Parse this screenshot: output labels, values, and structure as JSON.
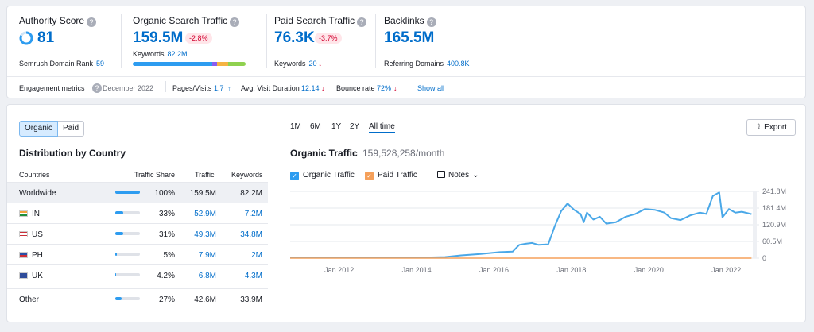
{
  "summary": {
    "authority": {
      "title": "Authority Score",
      "value": "81",
      "sub_label": "Semrush Domain Rank",
      "sub_value": "59"
    },
    "organic": {
      "title": "Organic Search Traffic",
      "value": "159.5M",
      "badge": "-2.8%",
      "sub_label": "Keywords",
      "sub_value": "82.2M"
    },
    "paid": {
      "title": "Paid Search Traffic",
      "value": "76.3K",
      "badge": "-3.7%",
      "sub_label": "Keywords",
      "sub_value": "20"
    },
    "backlinks": {
      "title": "Backlinks",
      "value": "165.5M",
      "sub_label": "Referring Domains",
      "sub_value": "400.8K"
    }
  },
  "engagement": {
    "label": "Engagement metrics",
    "date": "December 2022",
    "pages_label": "Pages/Visits",
    "pages_value": "1.7",
    "duration_label": "Avg. Visit Duration",
    "duration_value": "12:14",
    "bounce_label": "Bounce rate",
    "bounce_value": "72%",
    "show_all": "Show all"
  },
  "toggle": {
    "organic": "Organic",
    "paid": "Paid"
  },
  "distribution": {
    "title": "Distribution by Country",
    "headers": {
      "countries": "Countries",
      "share": "Traffic Share",
      "traffic": "Traffic",
      "keywords": "Keywords"
    },
    "rows": [
      {
        "country": "Worldwide",
        "share": "100%",
        "share_frac": 1.0,
        "traffic": "159.5M",
        "keywords": "82.2M"
      },
      {
        "country": "IN",
        "share": "33%",
        "share_frac": 0.33,
        "traffic": "52.9M",
        "keywords": "7.2M"
      },
      {
        "country": "US",
        "share": "31%",
        "share_frac": 0.31,
        "traffic": "49.3M",
        "keywords": "34.8M"
      },
      {
        "country": "PH",
        "share": "5%",
        "share_frac": 0.05,
        "traffic": "7.9M",
        "keywords": "2M"
      },
      {
        "country": "UK",
        "share": "4.2%",
        "share_frac": 0.042,
        "traffic": "6.8M",
        "keywords": "4.3M"
      },
      {
        "country": "Other",
        "share": "27%",
        "share_frac": 0.27,
        "traffic": "42.6M",
        "keywords": "33.9M"
      }
    ]
  },
  "ranges": [
    "1M",
    "6M",
    "1Y",
    "2Y",
    "All time"
  ],
  "export_label": "Export",
  "chart_title": "Organic Traffic",
  "chart_subtitle": "159,528,258/month",
  "legend": {
    "organic": "Organic Traffic",
    "paid": "Paid Traffic",
    "notes": "Notes"
  },
  "colors": {
    "organic": "#4aa8e8",
    "paid": "#f5a05a",
    "accent": "#006dca",
    "negative": "#d1002f"
  },
  "chart_data": {
    "type": "line",
    "title": "Organic Traffic",
    "x_ticks": [
      "Jan 2012",
      "Jan 2014",
      "Jan 2016",
      "Jan 2018",
      "Jan 2020",
      "Jan 2022"
    ],
    "y_ticks": [
      "241.8M",
      "181.4M",
      "120.9M",
      "60.5M",
      "0"
    ],
    "ylim": [
      0,
      241.8
    ],
    "grid": true,
    "series": [
      {
        "name": "Organic Traffic",
        "points": [
          [
            "2011-01",
            2
          ],
          [
            "2012-06",
            2
          ],
          [
            "2013-06",
            2
          ],
          [
            "2014-06",
            2
          ],
          [
            "2015-01",
            4
          ],
          [
            "2015-06",
            10
          ],
          [
            "2015-12",
            15
          ],
          [
            "2016-06",
            22
          ],
          [
            "2016-10",
            24
          ],
          [
            "2016-12",
            48
          ],
          [
            "2017-02",
            52
          ],
          [
            "2017-04",
            55
          ],
          [
            "2017-06",
            48
          ],
          [
            "2017-09",
            50
          ],
          [
            "2017-11",
            115
          ],
          [
            "2018-01",
            170
          ],
          [
            "2018-03",
            198
          ],
          [
            "2018-05",
            175
          ],
          [
            "2018-07",
            160
          ],
          [
            "2018-08",
            130
          ],
          [
            "2018-09",
            165
          ],
          [
            "2018-11",
            140
          ],
          [
            "2019-01",
            150
          ],
          [
            "2019-03",
            125
          ],
          [
            "2019-06",
            130
          ],
          [
            "2019-09",
            150
          ],
          [
            "2019-12",
            160
          ],
          [
            "2020-03",
            178
          ],
          [
            "2020-06",
            175
          ],
          [
            "2020-09",
            165
          ],
          [
            "2020-11",
            145
          ],
          [
            "2021-02",
            138
          ],
          [
            "2021-05",
            155
          ],
          [
            "2021-08",
            165
          ],
          [
            "2021-10",
            160
          ],
          [
            "2021-12",
            225
          ],
          [
            "2022-02",
            238
          ],
          [
            "2022-03",
            148
          ],
          [
            "2022-05",
            178
          ],
          [
            "2022-07",
            165
          ],
          [
            "2022-09",
            168
          ],
          [
            "2022-12",
            159.5
          ]
        ]
      },
      {
        "name": "Paid Traffic",
        "points": [
          [
            "2011-01",
            0
          ],
          [
            "2022-12",
            0
          ]
        ]
      }
    ]
  }
}
